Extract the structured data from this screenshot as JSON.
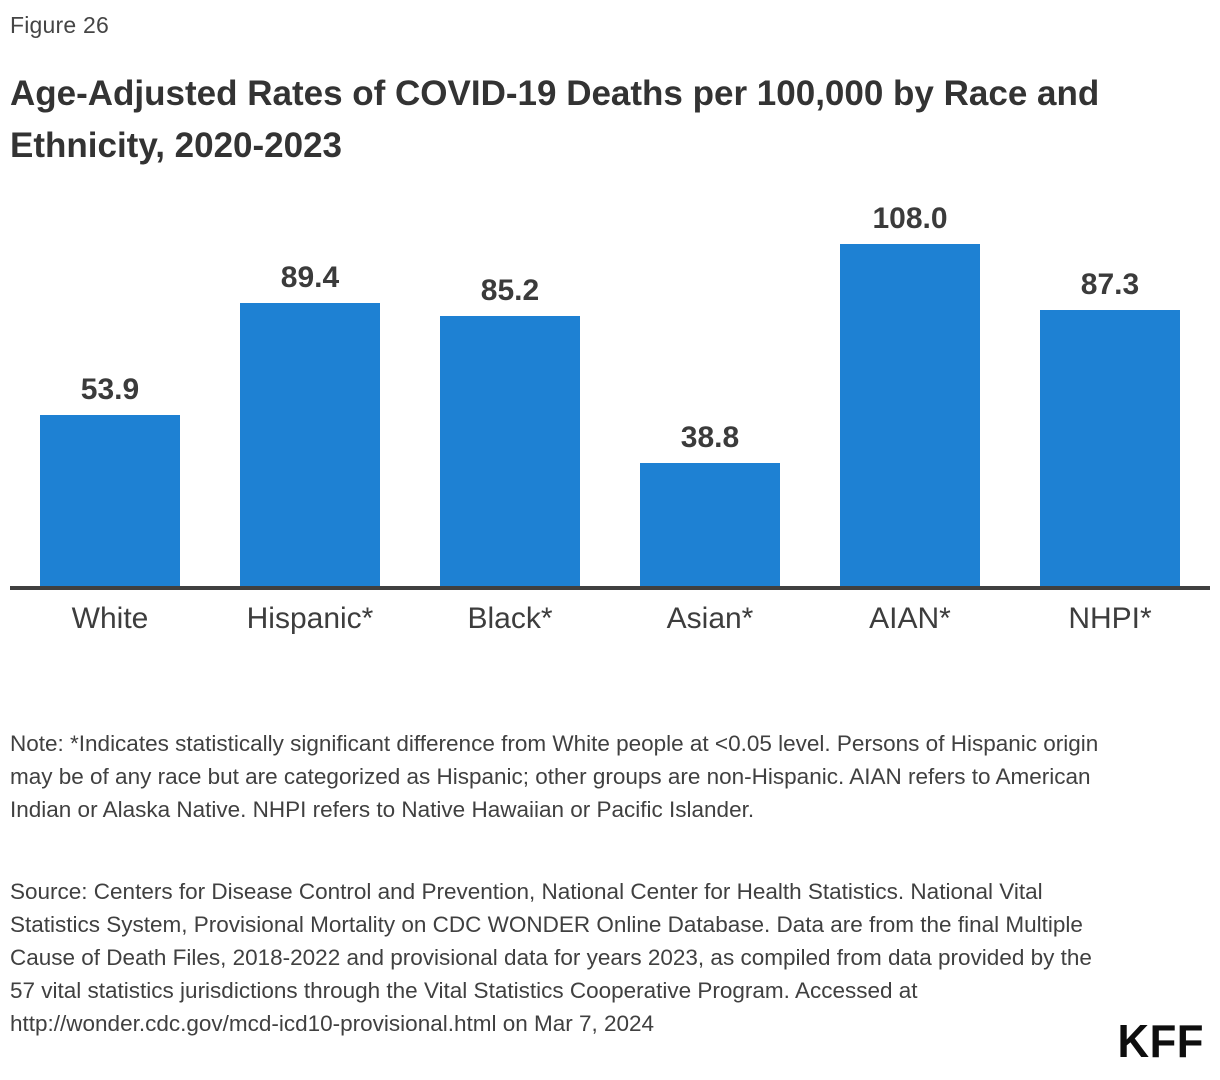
{
  "figure_label": "Figure 26",
  "title": "Age-Adjusted Rates of COVID-19 Deaths per 100,000 by Race and Ethnicity, 2020-2023",
  "chart_data": {
    "type": "bar",
    "title": "Age-Adjusted Rates of COVID-19 Deaths per 100,000 by Race and Ethnicity, 2020-2023",
    "categories": [
      "White",
      "Hispanic*",
      "Black*",
      "Asian*",
      "AIAN*",
      "NHPI*"
    ],
    "values": [
      53.9,
      89.4,
      85.2,
      38.8,
      108.0,
      87.3
    ],
    "data_labels": [
      "53.9",
      "89.4",
      "85.2",
      "38.8",
      "108.0",
      "87.3"
    ],
    "xlabel": "",
    "ylabel": "",
    "ylim": [
      0,
      122
    ],
    "grid": false,
    "legend": false,
    "y_axis_shown": false,
    "bar_color": "#1E81D3",
    "axis_color": "#404040"
  },
  "note": "Note: *Indicates statistically significant difference from White people at <0.05 level. Persons of Hispanic origin may be of any race but are categorized as Hispanic; other groups are non-Hispanic. AIAN refers to American Indian or Alaska Native. NHPI refers to Native Hawaiian or Pacific Islander.",
  "source": "Source: Centers for Disease Control and Prevention, National Center for Health Statistics. National Vital Statistics System, Provisional Mortality on CDC WONDER Online Database. Data are from the final Multiple Cause of Death Files, 2018-2022 and provisional data for years 2023, as compiled from data provided by the 57 vital statistics jurisdictions through the Vital Statistics Cooperative Program. Accessed at http://wonder.cdc.gov/mcd-icd10-provisional.html on Mar 7, 2024",
  "branding": {
    "logo_text": "KFF"
  },
  "colors": {
    "bar": "#1E81D3",
    "axis": "#404040",
    "title_text": "#333333",
    "body_text": "#404040"
  }
}
